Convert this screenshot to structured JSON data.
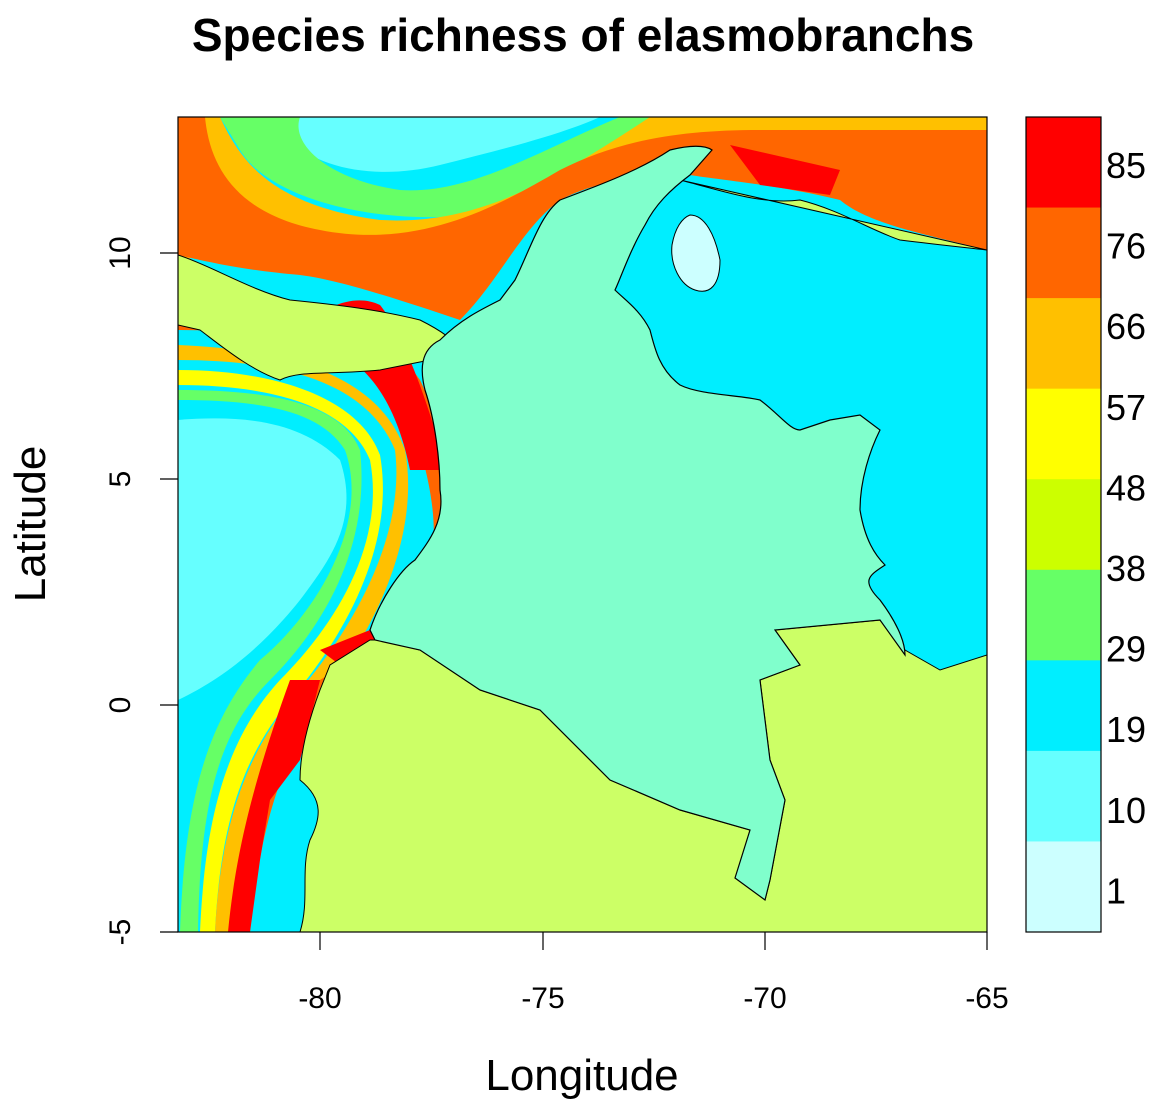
{
  "title": "Species richness of elasmobranchs",
  "axes": {
    "x": {
      "label": "Longitude",
      "ticks": [
        "-80",
        "-75",
        "-70",
        "-65"
      ]
    },
    "y": {
      "label": "Latitude",
      "ticks": [
        "-5",
        "0",
        "5",
        "10"
      ]
    }
  },
  "legend": {
    "labels": [
      "85",
      "76",
      "66",
      "57",
      "48",
      "38",
      "29",
      "19",
      "10",
      "1"
    ],
    "colors": [
      "#ff0000",
      "#ff6600",
      "#ffc000",
      "#ffff00",
      "#ccff00",
      "#66ff66",
      "#00eeff",
      "#66ffff",
      "#ccffff"
    ]
  },
  "map_colors": {
    "land_other": "#ccff66",
    "colombia": "#80ffcc",
    "lake": "#ccffff"
  }
}
